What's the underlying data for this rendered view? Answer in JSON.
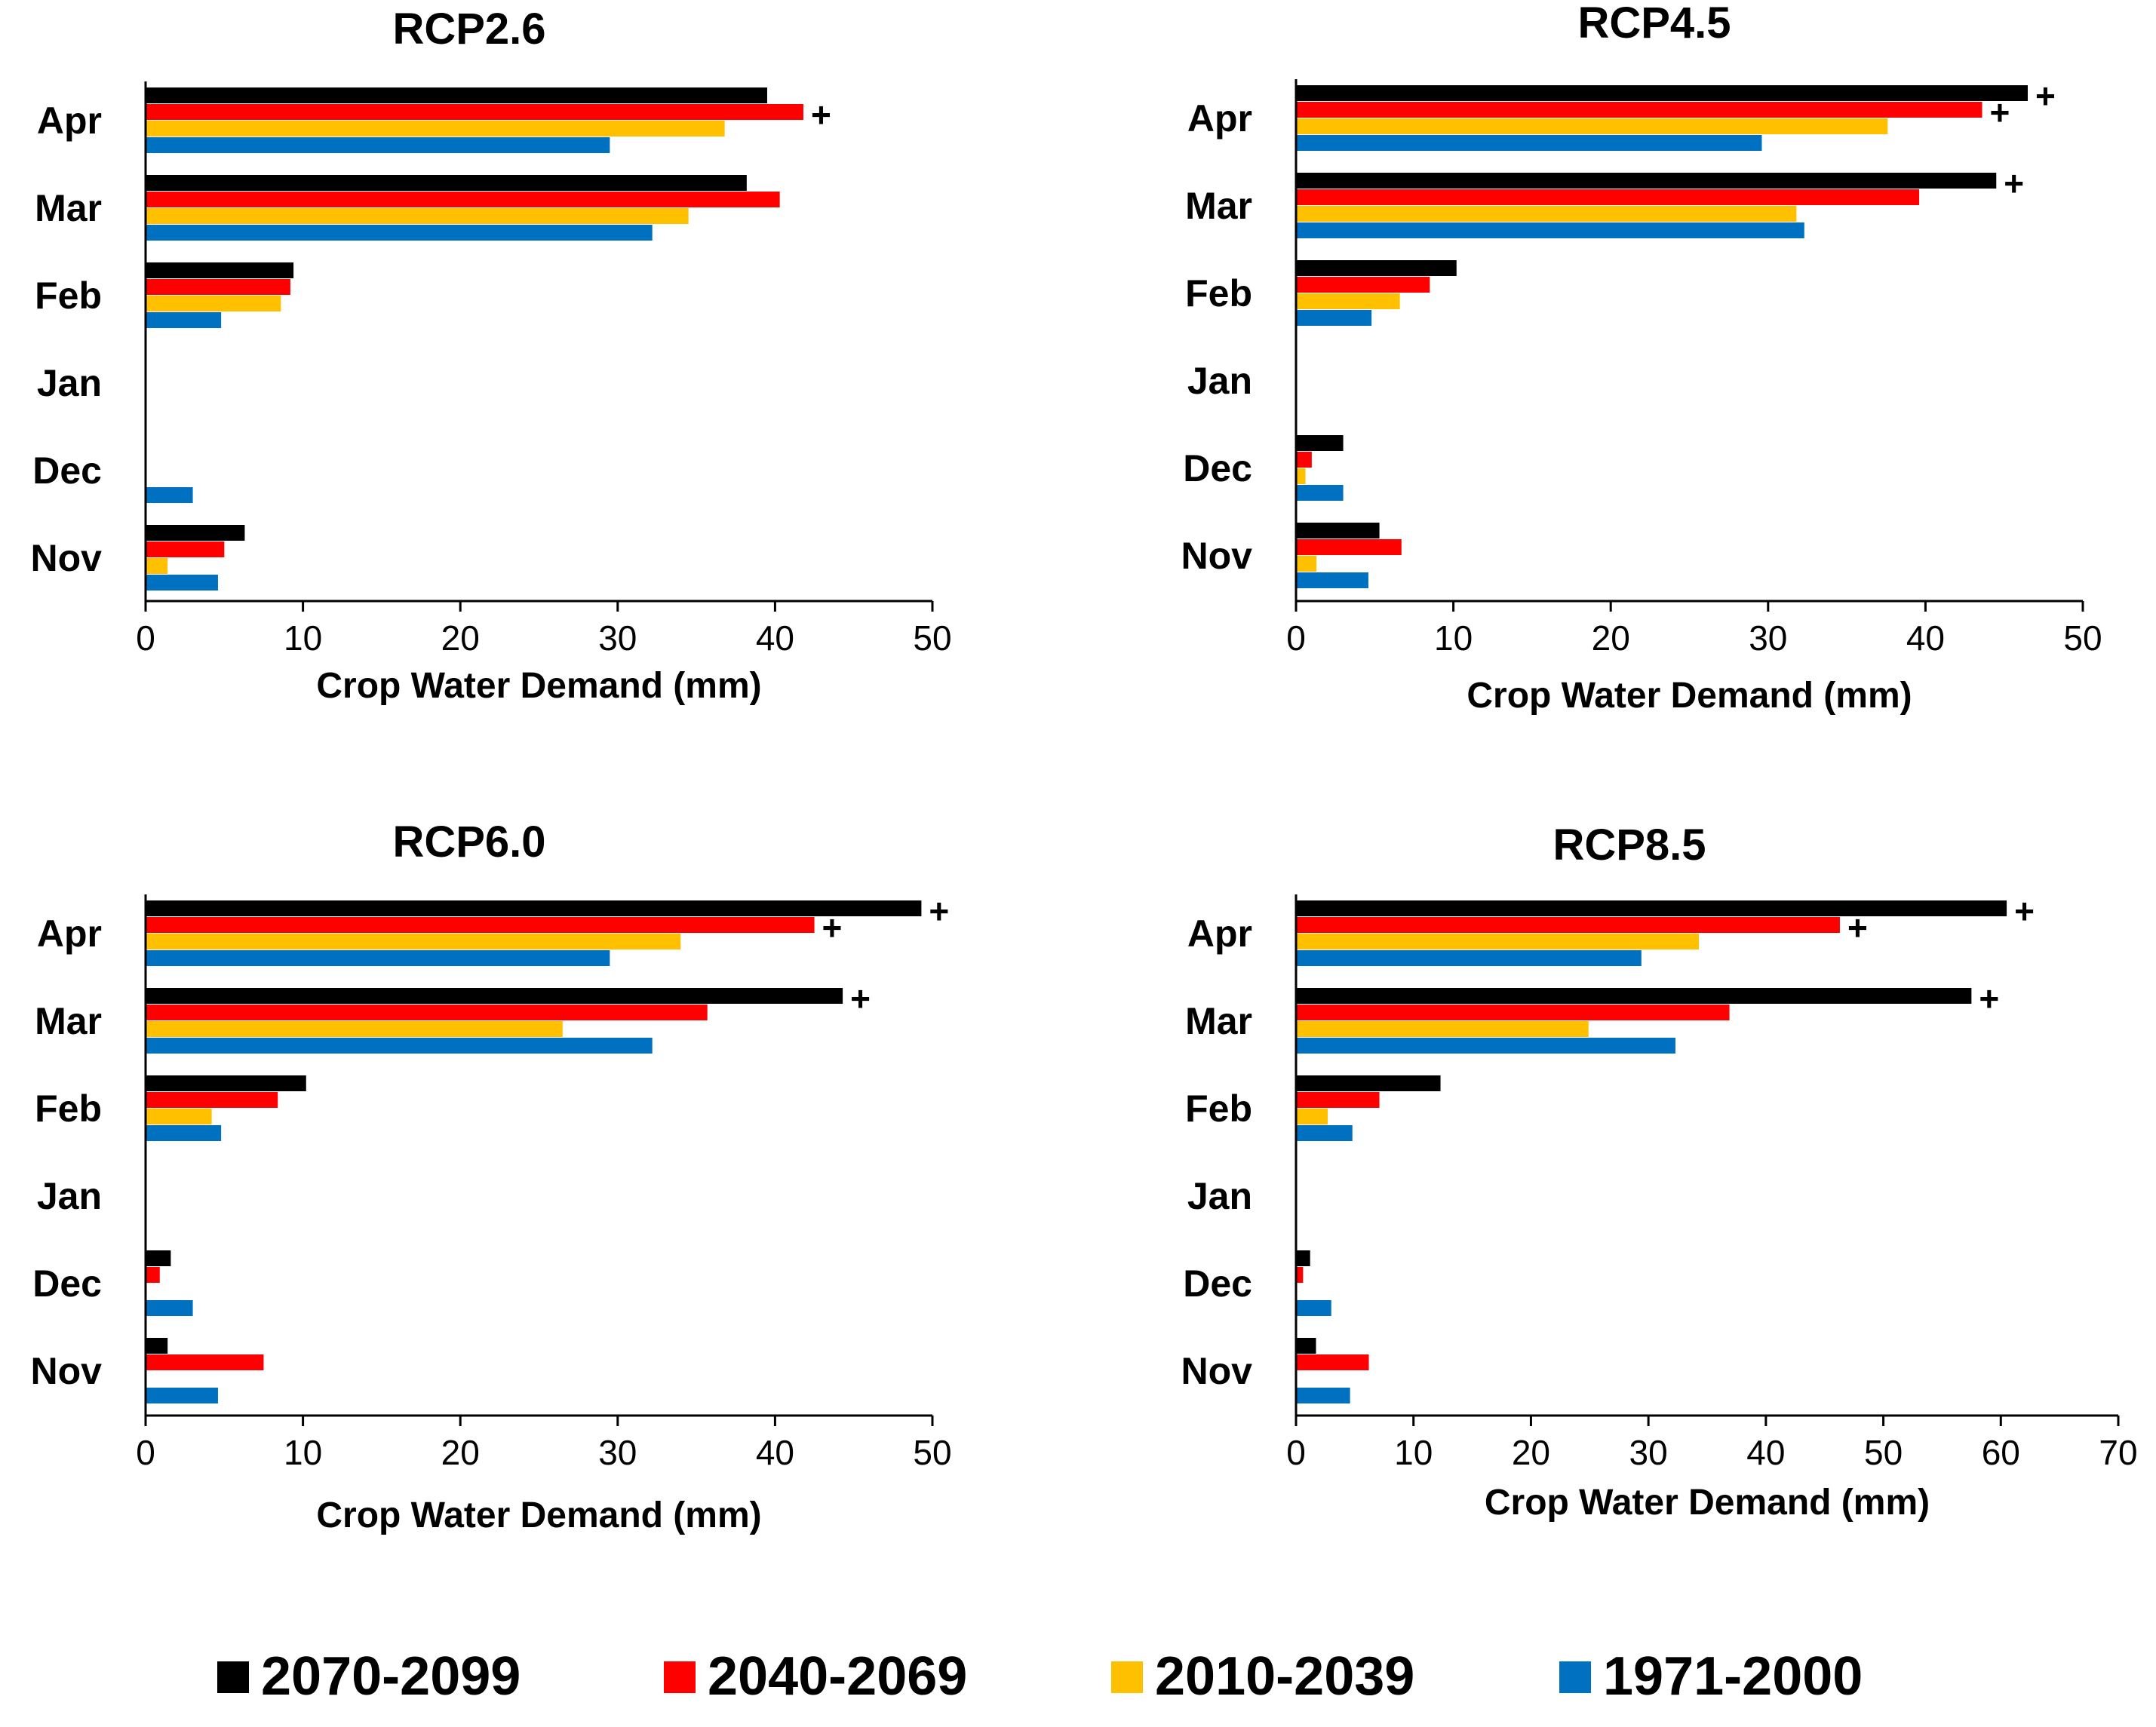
{
  "legend": [
    {
      "label": "2070-2099",
      "color": "#000000"
    },
    {
      "label": "2040-2069",
      "color": "#ff0000"
    },
    {
      "label": "2010-2039",
      "color": "#ffc000"
    },
    {
      "label": "1971-2000",
      "color": "#0070c0"
    }
  ],
  "chart_data": [
    {
      "type": "bar",
      "orientation": "horizontal",
      "title": "RCP2.6",
      "xlabel": "Crop Water Demand (mm)",
      "ylabel": "",
      "xlim": [
        0,
        50
      ],
      "xticks": [
        "0",
        "10",
        "20",
        "30",
        "40",
        "50"
      ],
      "categories": [
        "Apr",
        "Mar",
        "Feb",
        "Jan",
        "Dec",
        "Nov"
      ],
      "series": [
        {
          "name": "2070-2099",
          "values": [
            39.5,
            38.2,
            9.4,
            0,
            0,
            6.3
          ],
          "significant": [
            false,
            false,
            false,
            false,
            false,
            false
          ]
        },
        {
          "name": "2040-2069",
          "values": [
            41.8,
            40.3,
            9.2,
            0,
            0,
            5.0
          ],
          "significant": [
            true,
            false,
            false,
            false,
            false,
            false
          ]
        },
        {
          "name": "2010-2039",
          "values": [
            36.8,
            34.5,
            8.6,
            0,
            0,
            1.4
          ],
          "significant": [
            false,
            false,
            false,
            false,
            false,
            false
          ]
        },
        {
          "name": "1971-2000",
          "values": [
            29.5,
            32.2,
            4.8,
            0,
            3.0,
            4.6
          ],
          "significant": [
            false,
            false,
            false,
            false,
            false,
            false
          ]
        }
      ],
      "marker_label": "+"
    },
    {
      "type": "bar",
      "orientation": "horizontal",
      "title": "RCP4.5",
      "xlabel": "Crop Water Demand (mm)",
      "ylabel": "",
      "xlim": [
        0,
        50
      ],
      "xticks": [
        "0",
        "10",
        "20",
        "30",
        "40",
        "50"
      ],
      "categories": [
        "Apr",
        "Mar",
        "Feb",
        "Jan",
        "Dec",
        "Nov"
      ],
      "series": [
        {
          "name": "2070-2099",
          "values": [
            46.5,
            44.5,
            10.2,
            0,
            3.0,
            5.3
          ],
          "significant": [
            true,
            true,
            false,
            false,
            false,
            false
          ]
        },
        {
          "name": "2040-2069",
          "values": [
            43.6,
            39.6,
            8.5,
            0,
            1.0,
            6.7
          ],
          "significant": [
            true,
            false,
            false,
            false,
            false,
            false
          ]
        },
        {
          "name": "2010-2039",
          "values": [
            37.6,
            31.8,
            6.6,
            0,
            0.6,
            1.3
          ],
          "significant": [
            false,
            false,
            false,
            false,
            false,
            false
          ]
        },
        {
          "name": "1971-2000",
          "values": [
            29.6,
            32.3,
            4.8,
            0,
            3.0,
            4.6
          ],
          "significant": [
            false,
            false,
            false,
            false,
            false,
            false
          ]
        }
      ],
      "marker_label": "+"
    },
    {
      "type": "bar",
      "orientation": "horizontal",
      "title": "RCP6.0",
      "xlabel": "Crop Water Demand (mm)",
      "ylabel": "",
      "xlim": [
        0,
        50
      ],
      "xticks": [
        "0",
        "10",
        "20",
        "30",
        "40",
        "50"
      ],
      "categories": [
        "Apr",
        "Mar",
        "Feb",
        "Jan",
        "Dec",
        "Nov"
      ],
      "series": [
        {
          "name": "2070-2099",
          "values": [
            49.3,
            44.3,
            10.2,
            0,
            1.6,
            1.4
          ],
          "significant": [
            true,
            true,
            false,
            false,
            false,
            false
          ]
        },
        {
          "name": "2040-2069",
          "values": [
            42.5,
            35.7,
            8.4,
            0,
            0.9,
            7.5
          ],
          "significant": [
            true,
            false,
            false,
            false,
            false,
            false
          ]
        },
        {
          "name": "2010-2039",
          "values": [
            34.0,
            26.5,
            4.2,
            0,
            0,
            0
          ],
          "significant": [
            false,
            false,
            false,
            false,
            false,
            false
          ]
        },
        {
          "name": "1971-2000",
          "values": [
            29.5,
            32.2,
            4.8,
            0,
            3.0,
            4.6
          ],
          "significant": [
            false,
            false,
            false,
            false,
            false,
            false
          ]
        }
      ],
      "marker_label": "+"
    },
    {
      "type": "bar",
      "orientation": "horizontal",
      "title": "RCP8.5",
      "xlabel": "Crop Water Demand (mm)",
      "ylabel": "",
      "xlim": [
        0,
        70
      ],
      "xticks": [
        "0",
        "10",
        "20",
        "30",
        "40",
        "50",
        "60",
        "70"
      ],
      "categories": [
        "Apr",
        "Mar",
        "Feb",
        "Jan",
        "Dec",
        "Nov"
      ],
      "series": [
        {
          "name": "2070-2099",
          "values": [
            60.5,
            57.5,
            12.3,
            0,
            1.2,
            1.7
          ],
          "significant": [
            true,
            true,
            false,
            false,
            false,
            false
          ]
        },
        {
          "name": "2040-2069",
          "values": [
            46.3,
            36.9,
            7.1,
            0,
            0.6,
            6.2
          ],
          "significant": [
            true,
            false,
            false,
            false,
            false,
            false
          ]
        },
        {
          "name": "2010-2039",
          "values": [
            34.3,
            24.9,
            2.7,
            0,
            0,
            0
          ],
          "significant": [
            false,
            false,
            false,
            false,
            false,
            false
          ]
        },
        {
          "name": "1971-2000",
          "values": [
            29.4,
            32.3,
            4.8,
            0,
            3.0,
            4.6
          ],
          "significant": [
            false,
            false,
            false,
            false,
            false,
            false
          ]
        }
      ],
      "marker_label": "+"
    }
  ]
}
